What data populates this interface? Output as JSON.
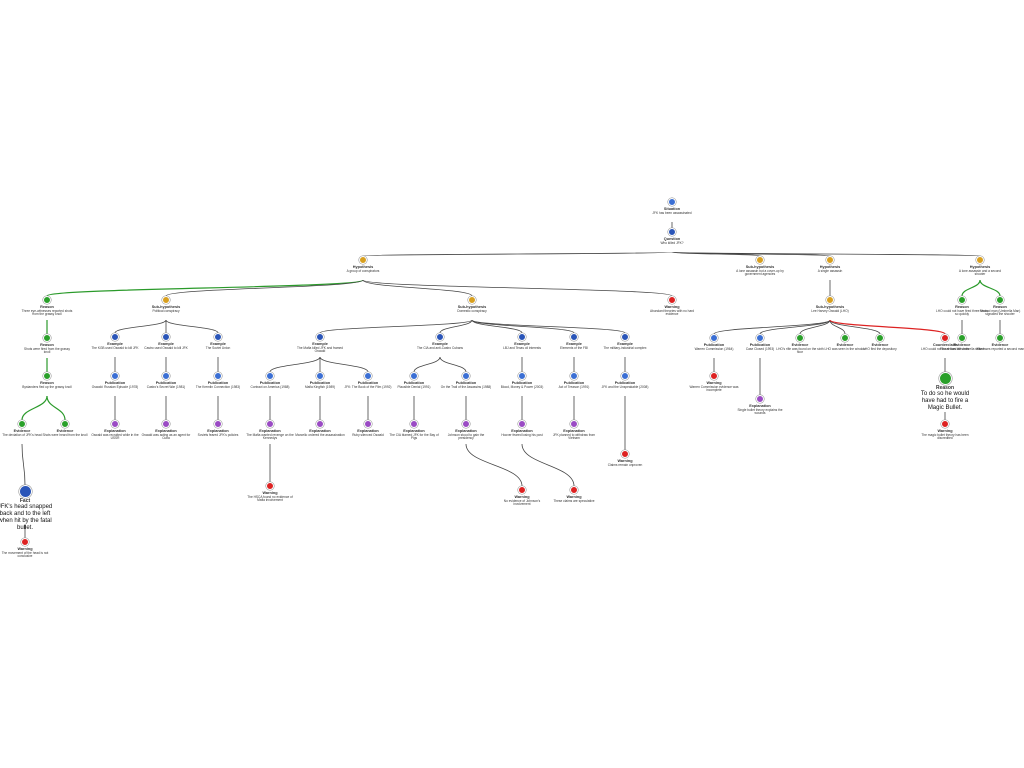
{
  "nodes": [
    {
      "type": "Situation",
      "text": "JFK has been assassinated"
    },
    {
      "type": "Question",
      "text": "Who killed JFK?"
    },
    {
      "type": "Hypothesis",
      "text": "A group of conspirators"
    },
    {
      "type": "Sub-hypothesis",
      "text": "A lone assassin but a cover-up by government agencies"
    },
    {
      "type": "Hypothesis",
      "text": "A single assassin"
    },
    {
      "type": "Hypothesis",
      "text": "A lone assassin and a second shooter"
    },
    {
      "type": "Reason",
      "text": "Three eye-witnesses reported shots from the grassy knoll"
    },
    {
      "type": "Sub-hypothesis",
      "text": "Political conspiracy"
    },
    {
      "type": "Sub-hypothesis",
      "text": "Domestic conspiracy"
    },
    {
      "type": "Warning",
      "text": "Abundant theories with no hard evidence"
    },
    {
      "type": "Sub-hypothesis",
      "text": "Lee Harvey Oswald (LHO)"
    },
    {
      "type": "Reason",
      "text": "LHO could not have fired three shots so quickly"
    },
    {
      "type": "Reason",
      "text": "Second man (Umbrella Man) signalled the shooter"
    },
    {
      "type": "Reason",
      "text": "Shots were fired from the grassy knoll"
    },
    {
      "type": "Reason",
      "text": "Bystanders fled up the grassy knoll"
    },
    {
      "type": "Evidence",
      "text": "The deviation of JFK's head"
    },
    {
      "type": "Evidence",
      "text": "Shots were heard from the knoll"
    },
    {
      "type": "Fact",
      "text": "JFK's head snapped back and to the left when hit by the fatal bullet."
    },
    {
      "type": "Warning",
      "text": "The movement of the head is not conclusive"
    },
    {
      "type": "Example",
      "text": "The KGB used Oswald to kill JFK"
    },
    {
      "type": "Example",
      "text": "Castro used Oswald to kill JFK"
    },
    {
      "type": "Example",
      "text": "The Soviet Union"
    },
    {
      "type": "Example",
      "text": "The Mafia killed JFK and framed Oswald"
    },
    {
      "type": "Example",
      "text": "The CIA and anti-Castro Cubans"
    },
    {
      "type": "Example",
      "text": "LBJ and Texas oil interests"
    },
    {
      "type": "Example",
      "text": "Elements of the FBI"
    },
    {
      "type": "Example",
      "text": "The military-industrial complex"
    },
    {
      "type": "Publication",
      "text": "Oswald: Russian Episode (1978)"
    },
    {
      "type": "Publication",
      "text": "Castro's Secret War (1981)"
    },
    {
      "type": "Publication",
      "text": "The Kremlin Connection (1983)"
    },
    {
      "type": "Publication",
      "text": "Contract on America (1988)"
    },
    {
      "type": "Publication",
      "text": "Mafia Kingfish (1989)"
    },
    {
      "type": "Publication",
      "text": "JFK: The Book of the Film (1992)"
    },
    {
      "type": "Publication",
      "text": "Plausible Denial (1991)"
    },
    {
      "type": "Publication",
      "text": "On the Trail of the Assassins (1988)"
    },
    {
      "type": "Publication",
      "text": "Blood, Money & Power (2003)"
    },
    {
      "type": "Publication",
      "text": "Act of Treason (1991)"
    },
    {
      "type": "Publication",
      "text": "JFK and the Unspeakable (2008)"
    },
    {
      "type": "Explanation",
      "text": "Oswald was recruited while in the USSR"
    },
    {
      "type": "Explanation",
      "text": "Oswald was acting as an agent for Cuba"
    },
    {
      "type": "Explanation",
      "text": "Soviets feared JFK's policies"
    },
    {
      "type": "Explanation",
      "text": "The Mafia wanted revenge on the Kennedys"
    },
    {
      "type": "Explanation",
      "text": "Marcello ordered the assassination"
    },
    {
      "type": "Explanation",
      "text": "Ruby silenced Oswald"
    },
    {
      "type": "Explanation",
      "text": "The CIA blamed JFK for the Bay of Pigs"
    },
    {
      "type": "Explanation",
      "text": "Johnson stood to gain the presidency"
    },
    {
      "type": "Explanation",
      "text": "Hoover feared losing his post"
    },
    {
      "type": "Explanation",
      "text": "JFK planned to withdraw from Vietnam"
    },
    {
      "type": "Warning",
      "text": "The HSCA found no evidence of Mafia involvement"
    },
    {
      "type": "Warning",
      "text": "No evidence of Johnson's involvement"
    },
    {
      "type": "Warning",
      "text": "These claims are speculative"
    },
    {
      "type": "Warning",
      "text": "Claims remain unproven"
    },
    {
      "type": "Publication",
      "text": "Warren Commission (1964)"
    },
    {
      "type": "Publication",
      "text": "Case Closed (1993)"
    },
    {
      "type": "Evidence",
      "text": "LHO's rifle was found on the sixth floor"
    },
    {
      "type": "Evidence",
      "text": "LHO was seen in the window"
    },
    {
      "type": "Evidence",
      "text": "LHO fled the depository"
    },
    {
      "type": "Counterclaim",
      "text": "LHO could not have fired all shots"
    },
    {
      "type": "Warning",
      "text": "Warren Commission evidence was incomplete"
    },
    {
      "type": "Explanation",
      "text": "Single bullet theory explains the wounds"
    },
    {
      "type": "Reason",
      "text": "To do so he would have had to fire a Magic Bullet."
    },
    {
      "type": "Warning",
      "text": "The magic bullet theory has been discredited"
    },
    {
      "type": "Evidence",
      "text": "Film shows the umbrella raised"
    },
    {
      "type": "Evidence",
      "text": "Witnesses reported a second man"
    }
  ]
}
